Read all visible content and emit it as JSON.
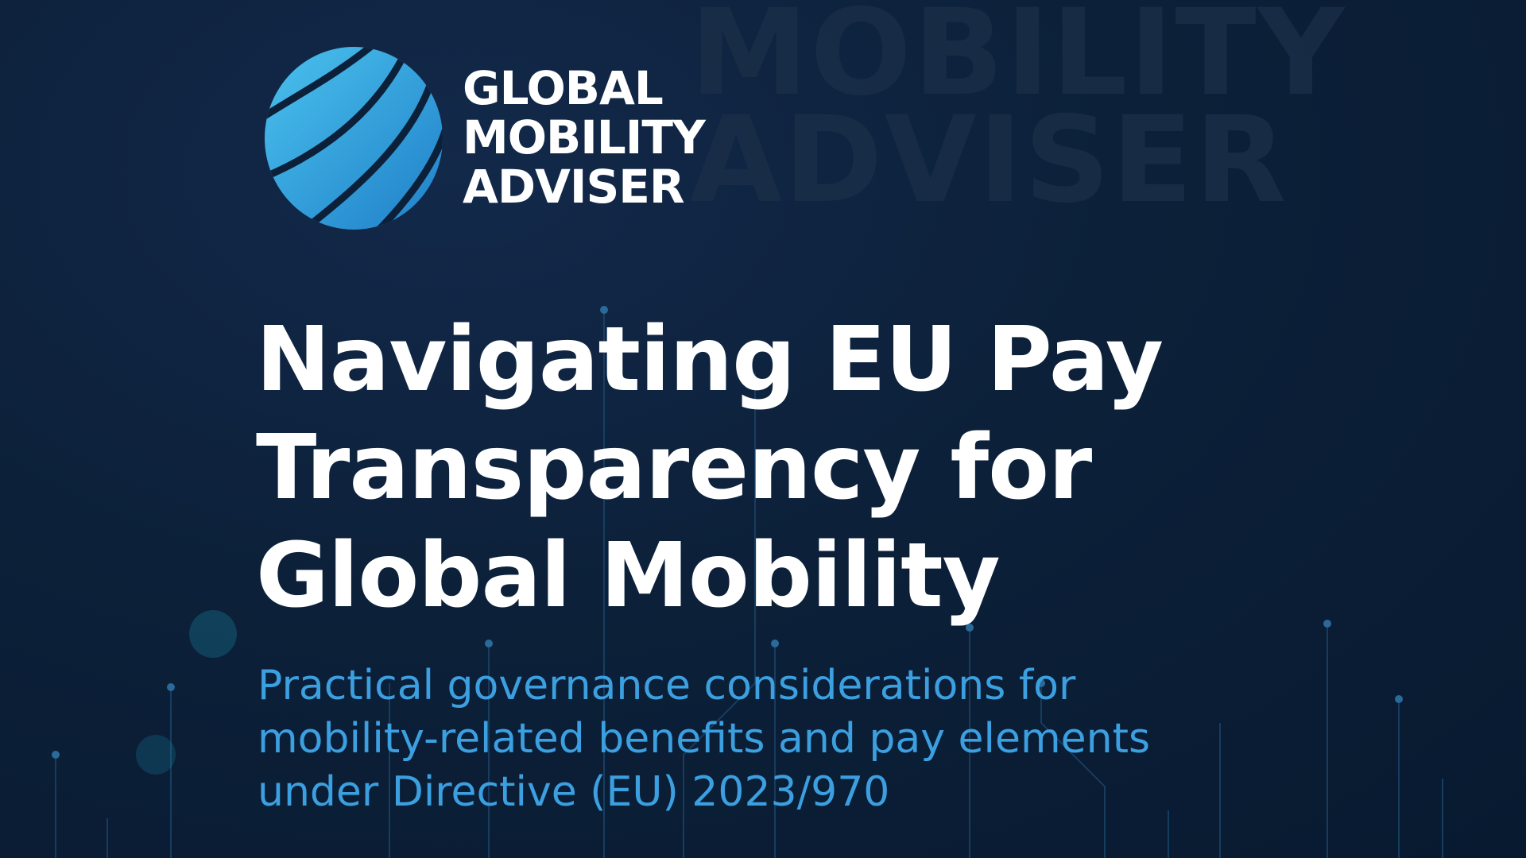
{
  "brand": {
    "logo_lines": [
      "GLOBAL",
      "MOBILITY",
      "ADVISER"
    ],
    "watermark_lines": [
      "MOBILITY",
      "ADVISER"
    ]
  },
  "cover": {
    "title_lines": [
      "Navigating EU Pay",
      "Transparency for",
      "Global Mobility"
    ],
    "subtitle_lines": [
      "Practical governance considerations for",
      "mobility-related benefits and pay elements",
      "under Directive (EU) 2023/970"
    ]
  },
  "colors": {
    "background": "#0c2039",
    "accent": "#3b9fe0",
    "title": "#ffffff"
  }
}
